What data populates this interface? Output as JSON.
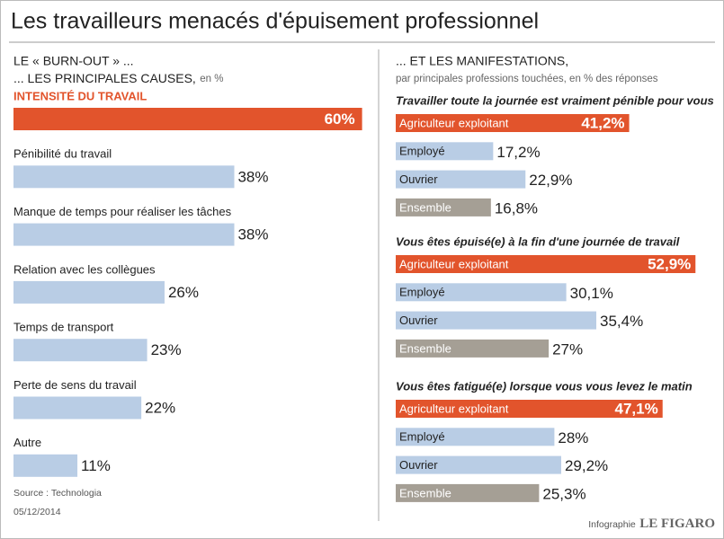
{
  "title": "Les travailleurs menacés d'épuisement professionnel",
  "source": "Source : Technologia",
  "date": "05/12/2014",
  "credit_label": "Infographie",
  "credit_brand": "LE FIGARO",
  "chart_data": [
    {
      "type": "bar",
      "title": "LE « BURN-OUT » ...",
      "subtitle": "... LES PRINCIPALES CAUSES,",
      "unit": "en %",
      "categories": [
        "INTENSITÉ DU TRAVAIL",
        "Pénibilité du travail",
        "Manque de temps pour réaliser les tâches",
        "Relation avec les collègues",
        "Temps de transport",
        "Perte de sens du travail",
        "Autre"
      ],
      "values": [
        60,
        38,
        38,
        26,
        23,
        22,
        11
      ],
      "value_labels": [
        "60%",
        "38%",
        "38%",
        "26%",
        "23%",
        "22%",
        "11%"
      ],
      "colors": [
        "#e2542c",
        "#b9cde5",
        "#b9cde5",
        "#b9cde5",
        "#b9cde5",
        "#b9cde5",
        "#b9cde5"
      ]
    },
    {
      "type": "bar",
      "panel_title": "... ET LES MANIFESTATIONS,",
      "panel_subtitle": "par principales professions touchées, en % des réponses",
      "title": "Travailler toute la journée est vraiment pénible pour vous",
      "categories": [
        "Agriculteur exploitant",
        "Employé",
        "Ouvrier",
        "Ensemble"
      ],
      "values": [
        41.2,
        17.2,
        22.9,
        16.8
      ],
      "value_labels": [
        "41,2%",
        "17,2%",
        "22,9%",
        "16,8%"
      ],
      "colors": [
        "#e2542c",
        "#b9cde5",
        "#b9cde5",
        "#a59f95"
      ]
    },
    {
      "type": "bar",
      "title": "Vous êtes épuisé(e) à la fin d'une journée de travail",
      "categories": [
        "Agriculteur exploitant",
        "Employé",
        "Ouvrier",
        "Ensemble"
      ],
      "values": [
        52.9,
        30.1,
        35.4,
        27
      ],
      "value_labels": [
        "52,9%",
        "30,1%",
        "35,4%",
        "27%"
      ],
      "colors": [
        "#e2542c",
        "#b9cde5",
        "#b9cde5",
        "#a59f95"
      ]
    },
    {
      "type": "bar",
      "title": "Vous êtes fatigué(e) lorsque vous vous levez le matin",
      "categories": [
        "Agriculteur exploitant",
        "Employé",
        "Ouvrier",
        "Ensemble"
      ],
      "values": [
        47.1,
        28,
        29.2,
        25.3
      ],
      "value_labels": [
        "47,1%",
        "28%",
        "29,2%",
        "25,3%"
      ],
      "colors": [
        "#e2542c",
        "#b9cde5",
        "#b9cde5",
        "#a59f95"
      ]
    }
  ]
}
